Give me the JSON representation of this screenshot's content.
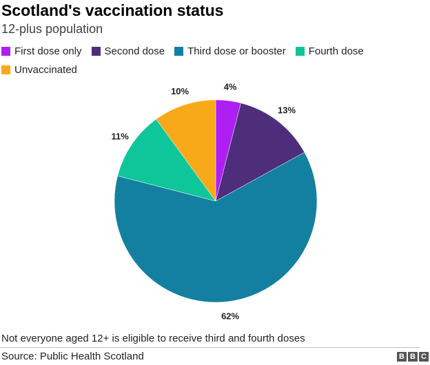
{
  "header": {
    "title": "Scotland's vaccination status",
    "subtitle": "12-plus population"
  },
  "chart_data": {
    "type": "pie",
    "categories": [
      "First dose only",
      "Second dose",
      "Third dose or booster",
      "Fourth dose",
      "Unvaccinated"
    ],
    "values": [
      4,
      13,
      62,
      11,
      10
    ],
    "labels": [
      "4%",
      "13%",
      "62%",
      "11%",
      "10%"
    ],
    "colors": [
      "#ad1ff2",
      "#4e2d7a",
      "#1380a1",
      "#0fc69a",
      "#f8a919"
    ],
    "start_angle_deg": 0,
    "direction": "clockwise",
    "legend_position": "top"
  },
  "footer": {
    "note": "Not everyone aged 12+ is eligible to receive third and fourth doses",
    "source": "Source: Public Health Scotland",
    "logo_letters": [
      "B",
      "B",
      "C"
    ]
  }
}
